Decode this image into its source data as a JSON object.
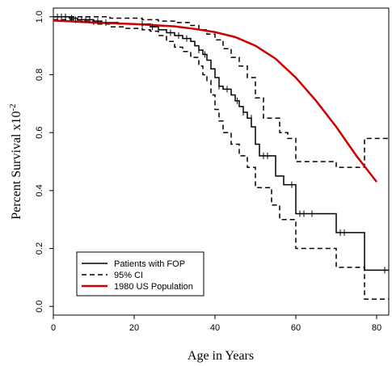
{
  "chart_data": {
    "type": "line",
    "xlabel": "Age in Years",
    "ylabel": "Percent Survival x10",
    "ylabel_superscript": "-2",
    "xlim": [
      0,
      83
    ],
    "ylim": [
      -0.03,
      1.03
    ],
    "x_ticks": [
      0,
      20,
      40,
      60,
      80
    ],
    "x_tick_labels": [
      "0",
      "20",
      "40",
      "60",
      "80"
    ],
    "y_ticks": [
      0.0,
      0.2,
      0.4,
      0.6,
      0.8,
      1.0
    ],
    "y_tick_labels": [
      "0.0",
      "0.2",
      "0.4",
      "0.6",
      "0.8",
      "1.0"
    ],
    "grid": false,
    "legend_position": "bottom-left",
    "series": [
      {
        "name": "Patients with FOP",
        "style": "step",
        "dash": "solid",
        "color": "#000000",
        "x": [
          0,
          4,
          6,
          8,
          10,
          12,
          14,
          16,
          20,
          24,
          26,
          28,
          30,
          32,
          34,
          35,
          36,
          37,
          38,
          39,
          40,
          41,
          42,
          44,
          45,
          46,
          47,
          48,
          49,
          50,
          51,
          54,
          55,
          56,
          57,
          58,
          60,
          70,
          77,
          83
        ],
        "y": [
          1.0,
          0.995,
          0.99,
          0.99,
          0.985,
          0.98,
          0.98,
          0.975,
          0.975,
          0.965,
          0.955,
          0.945,
          0.935,
          0.925,
          0.915,
          0.9,
          0.885,
          0.87,
          0.85,
          0.82,
          0.79,
          0.76,
          0.75,
          0.73,
          0.71,
          0.69,
          0.67,
          0.65,
          0.62,
          0.56,
          0.52,
          0.52,
          0.45,
          0.45,
          0.42,
          0.42,
          0.32,
          0.255,
          0.125,
          0.125
        ]
      },
      {
        "name": "95% CI",
        "style": "step",
        "dash": "dashed",
        "color": "#000000",
        "x": [
          0,
          6,
          10,
          14,
          18,
          22,
          26,
          30,
          34,
          36,
          38,
          40,
          42,
          44,
          46,
          48,
          50,
          52,
          54,
          56,
          58,
          60,
          70,
          77,
          83
        ],
        "y": [
          1.0,
          1.0,
          1.0,
          0.995,
          0.995,
          0.99,
          0.985,
          0.98,
          0.97,
          0.955,
          0.94,
          0.92,
          0.89,
          0.86,
          0.83,
          0.79,
          0.72,
          0.65,
          0.65,
          0.6,
          0.58,
          0.5,
          0.48,
          0.58,
          0.58
        ]
      },
      {
        "name": "95% CI",
        "style": "step",
        "dash": "dashed",
        "color": "#000000",
        "x": [
          0,
          6,
          10,
          14,
          18,
          22,
          24,
          26,
          28,
          30,
          32,
          34,
          36,
          37,
          38,
          39,
          40,
          41,
          42,
          44,
          46,
          48,
          50,
          52,
          54,
          56,
          58,
          60,
          70,
          77,
          83
        ],
        "y": [
          0.99,
          0.985,
          0.975,
          0.965,
          0.96,
          0.955,
          0.95,
          0.935,
          0.915,
          0.895,
          0.88,
          0.86,
          0.83,
          0.8,
          0.78,
          0.73,
          0.68,
          0.64,
          0.6,
          0.56,
          0.52,
          0.48,
          0.41,
          0.41,
          0.35,
          0.3,
          0.3,
          0.2,
          0.135,
          0.025,
          0.025
        ]
      },
      {
        "name": "1980 US Population",
        "style": "line",
        "dash": "solid",
        "color": "#cc0000",
        "x": [
          0,
          10,
          20,
          30,
          35,
          40,
          45,
          50,
          55,
          60,
          65,
          70,
          75,
          80
        ],
        "y": [
          0.987,
          0.98,
          0.975,
          0.967,
          0.958,
          0.947,
          0.93,
          0.9,
          0.855,
          0.79,
          0.71,
          0.62,
          0.52,
          0.43
        ]
      }
    ],
    "censor_marks": {
      "x": [
        1,
        2,
        3,
        4.5,
        5.5,
        7,
        8,
        9,
        11,
        13,
        22,
        24.5,
        29,
        31,
        33,
        36,
        37.5,
        41,
        43,
        45.5,
        47,
        49,
        52,
        53,
        59,
        61,
        62,
        64,
        71,
        72,
        82
      ],
      "y": [
        1.0,
        1.0,
        1.0,
        0.995,
        0.99,
        0.99,
        0.99,
        0.99,
        0.985,
        0.98,
        0.975,
        0.965,
        0.945,
        0.935,
        0.925,
        0.885,
        0.87,
        0.76,
        0.75,
        0.71,
        0.67,
        0.65,
        0.52,
        0.52,
        0.42,
        0.32,
        0.32,
        0.32,
        0.255,
        0.255,
        0.125
      ]
    },
    "legend": {
      "entries": [
        {
          "label": "Patients with FOP",
          "color": "#000000",
          "dash": "solid"
        },
        {
          "label": "95% CI",
          "color": "#000000",
          "dash": "dashed"
        },
        {
          "label": "1980 US Population",
          "color": "#cc0000",
          "dash": "solid"
        }
      ]
    }
  }
}
